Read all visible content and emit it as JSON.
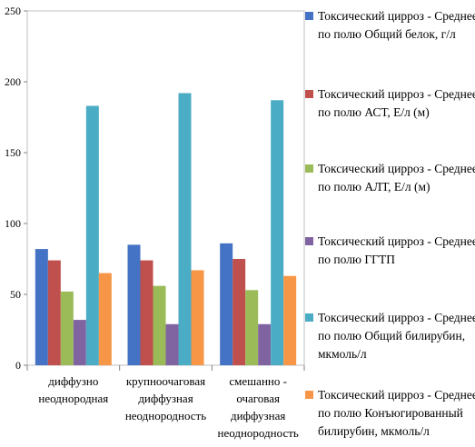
{
  "chart_data": {
    "type": "bar",
    "categories": [
      [
        "диффузно",
        "неоднородная"
      ],
      [
        "крупноочаговая",
        "диффузная",
        "неоднородность"
      ],
      [
        "смешанно -",
        "очаговая",
        "диффузная",
        "неоднородность"
      ]
    ],
    "ylim": [
      0,
      250
    ],
    "yticks": [
      0,
      50,
      100,
      150,
      200,
      250
    ],
    "grid": false,
    "legend_position": "right",
    "series": [
      {
        "name": "Токсический цирроз - Среднее по полю Общий белок, г/л",
        "color": "#4472c4",
        "values": [
          82,
          85,
          86
        ]
      },
      {
        "name": "Токсический цирроз - Среднее по полю АСТ, Е/л (м)",
        "color": "#c0504d",
        "values": [
          74,
          74,
          75
        ]
      },
      {
        "name": "Токсический цирроз - Среднее по полю АЛТ, Е/л (м)",
        "color": "#9bbb59",
        "values": [
          52,
          56,
          53
        ]
      },
      {
        "name": "Токсический цирроз - Среднее по полю ГГТП",
        "color": "#8064a2",
        "values": [
          32,
          29,
          29
        ]
      },
      {
        "name": "Токсический цирроз - Среднее по полю Общий билирубин, мкмоль/л",
        "color": "#4bacc6",
        "values": [
          183,
          192,
          187
        ]
      },
      {
        "name": "Токсический цирроз - Среднее по полю Конъюгированный билирубин, мкмоль/л",
        "color": "#f79646",
        "values": [
          65,
          67,
          63
        ]
      }
    ]
  }
}
